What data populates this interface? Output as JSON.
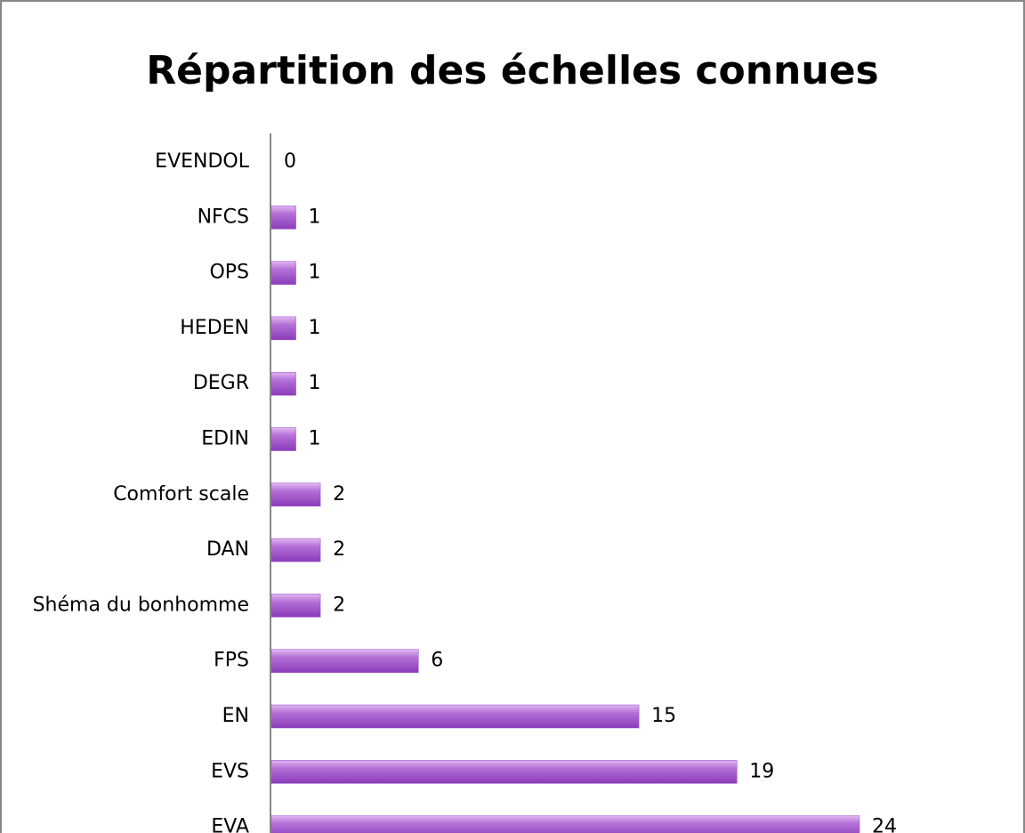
{
  "chart_data": {
    "type": "bar",
    "orientation": "horizontal",
    "title": "Répartition des échelles connues",
    "categories": [
      "EVENDOL",
      "NFCS",
      "OPS",
      "HEDEN",
      "DEGR",
      "EDIN",
      "Comfort scale",
      "DAN",
      "Shéma du bonhomme",
      "FPS",
      "EN",
      "EVS",
      "EVA"
    ],
    "values": [
      0,
      1,
      1,
      1,
      1,
      1,
      2,
      2,
      2,
      6,
      15,
      19,
      24
    ],
    "color": "#9b4dca"
  }
}
